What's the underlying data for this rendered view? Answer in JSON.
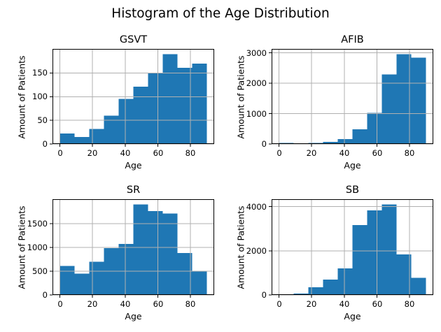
{
  "figure": {
    "suptitle": "Histogram of the Age Distribution",
    "background": "#ffffff",
    "bar_color": "#1f77b4",
    "grid_color": "#b0b0b0",
    "spine_color": "#000000",
    "text_color": "#000000"
  },
  "chart_data": [
    {
      "type": "bar",
      "title": "GSVT",
      "xlabel": "Age",
      "ylabel": "Amount of Patients",
      "bin_edges": [
        0,
        9,
        18,
        27,
        36,
        45,
        54,
        63,
        72,
        81,
        90
      ],
      "values": [
        22,
        15,
        32,
        60,
        95,
        121,
        150,
        190,
        161,
        170
      ],
      "xticks": [
        0,
        20,
        40,
        60,
        80
      ],
      "yticks": [
        0,
        50,
        100,
        150
      ],
      "xlim": [
        -4.5,
        94.5
      ],
      "ylim": [
        0,
        199.5
      ],
      "grid": true,
      "legend": false
    },
    {
      "type": "bar",
      "title": "AFIB",
      "xlabel": "Age",
      "ylabel": "Amount of Patients",
      "bin_edges": [
        0,
        9,
        18,
        27,
        36,
        45,
        54,
        63,
        72,
        81,
        90
      ],
      "values": [
        30,
        8,
        30,
        70,
        160,
        480,
        1030,
        2290,
        2960,
        2840
      ],
      "xticks": [
        0,
        20,
        40,
        60,
        80
      ],
      "yticks": [
        0,
        1000,
        2000,
        3000
      ],
      "xlim": [
        -4.5,
        94.5
      ],
      "ylim": [
        0,
        3108
      ],
      "grid": true,
      "legend": false
    },
    {
      "type": "bar",
      "title": "SR",
      "xlabel": "Age",
      "ylabel": "Amount of Patients",
      "bin_edges": [
        0,
        9,
        18,
        27,
        36,
        45,
        54,
        63,
        72,
        81,
        90
      ],
      "values": [
        610,
        450,
        700,
        985,
        1070,
        1905,
        1765,
        1710,
        880,
        510
      ],
      "xticks": [
        0,
        20,
        40,
        60,
        80
      ],
      "yticks": [
        0,
        500,
        1000,
        1500
      ],
      "xlim": [
        -4.5,
        94.5
      ],
      "ylim": [
        0,
        2000
      ],
      "grid": true,
      "legend": false
    },
    {
      "type": "bar",
      "title": "SB",
      "xlabel": "Age",
      "ylabel": "Amount of Patients",
      "bin_edges": [
        0,
        9,
        18,
        27,
        36,
        45,
        54,
        63,
        72,
        81,
        90
      ],
      "values": [
        20,
        60,
        350,
        690,
        1200,
        3170,
        3830,
        4100,
        1840,
        780
      ],
      "xticks": [
        0,
        20,
        40,
        60,
        80
      ],
      "yticks": [
        0,
        2000,
        4000
      ],
      "xlim": [
        -4.5,
        94.5
      ],
      "ylim": [
        0,
        4305
      ],
      "grid": true,
      "legend": false
    }
  ]
}
